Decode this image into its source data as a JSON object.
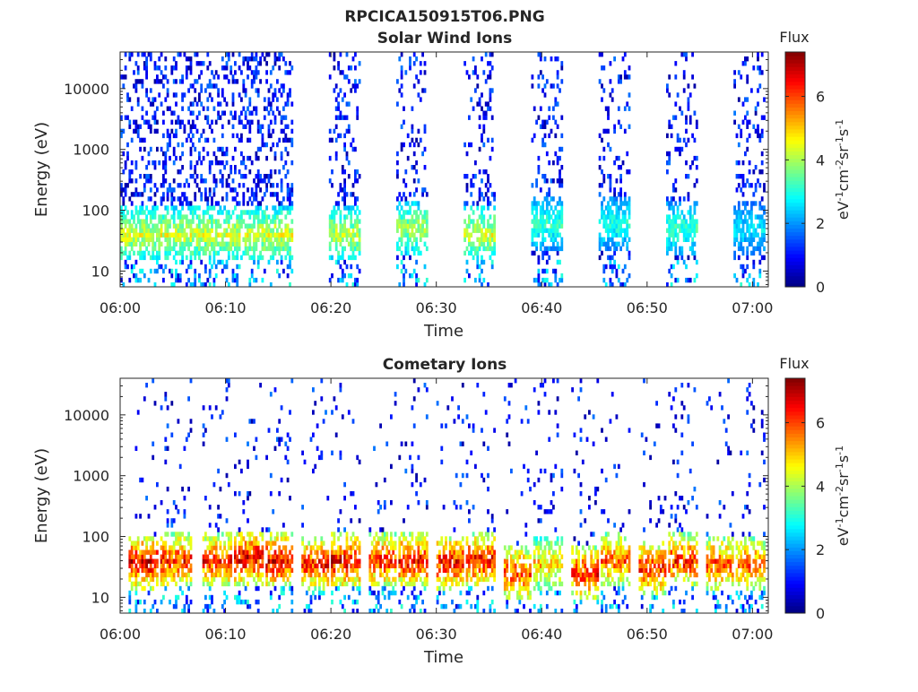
{
  "figure_title": "RPCICA150915T06.PNG",
  "chart_data": [
    {
      "type": "heatmap",
      "title": "Solar Wind Ions",
      "xlabel": "Time",
      "ylabel": "Energy (eV)",
      "x_ticks": [
        "06:00",
        "06:10",
        "06:20",
        "06:30",
        "06:40",
        "06:50",
        "07:00"
      ],
      "x_range_minutes": [
        0,
        61.5
      ],
      "y_scale": "log",
      "y_range": [
        5.5,
        40000
      ],
      "y_ticks": [
        10,
        100,
        1000,
        10000
      ],
      "colorbar": {
        "title": "Flux",
        "label": "eV-1cm-2sr-1s-1",
        "range": [
          0,
          7.4
        ],
        "ticks": [
          0,
          2,
          4,
          6
        ],
        "colormap": "jet"
      },
      "sweeps": [
        {
          "start": 0.0,
          "end": 16.4,
          "core_flux": 4.6,
          "core_energy": 40,
          "upper_density": 0.26
        },
        {
          "start": 19.8,
          "end": 22.8,
          "core_flux": 4.4,
          "core_energy": 40,
          "upper_density": 0.2
        },
        {
          "start": 26.2,
          "end": 29.2,
          "core_flux": 4.2,
          "core_energy": 50,
          "upper_density": 0.16
        },
        {
          "start": 32.6,
          "end": 35.6,
          "core_flux": 4.6,
          "core_energy": 40,
          "upper_density": 0.18
        },
        {
          "start": 39.0,
          "end": 42.0,
          "core_flux": 3.4,
          "core_energy": 60,
          "upper_density": 0.18
        },
        {
          "start": 45.4,
          "end": 48.4,
          "core_flux": 3.2,
          "core_energy": 60,
          "upper_density": 0.16
        },
        {
          "start": 51.8,
          "end": 54.8,
          "core_flux": 3.4,
          "core_energy": 50,
          "upper_density": 0.16
        },
        {
          "start": 58.2,
          "end": 61.2,
          "core_flux": 2.8,
          "core_energy": 50,
          "upper_density": 0.18
        }
      ]
    },
    {
      "type": "heatmap",
      "title": "Cometary Ions",
      "xlabel": "Time",
      "ylabel": "Energy (eV)",
      "x_ticks": [
        "06:00",
        "06:10",
        "06:20",
        "06:30",
        "06:40",
        "06:50",
        "07:00"
      ],
      "x_range_minutes": [
        0,
        61.5
      ],
      "y_scale": "log",
      "y_range": [
        5.5,
        40000
      ],
      "y_ticks": [
        10,
        100,
        1000,
        10000
      ],
      "colorbar": {
        "title": "Flux",
        "label": "eV-1cm-2sr-1s-1",
        "range": [
          0,
          7.4
        ],
        "ticks": [
          0,
          2,
          4,
          6
        ],
        "colormap": "jet"
      },
      "sweeps": [
        {
          "start": 0.8,
          "end": 3.6,
          "core_flux": 7.0,
          "core_energy": 38,
          "upper_density": 0.05
        },
        {
          "start": 3.8,
          "end": 6.8,
          "core_flux": 6.6,
          "core_energy": 40,
          "upper_density": 0.06
        },
        {
          "start": 7.8,
          "end": 10.6,
          "core_flux": 6.6,
          "core_energy": 40,
          "upper_density": 0.06
        },
        {
          "start": 10.8,
          "end": 13.6,
          "core_flux": 7.0,
          "core_energy": 45,
          "upper_density": 0.06
        },
        {
          "start": 13.8,
          "end": 16.4,
          "core_flux": 7.0,
          "core_energy": 40,
          "upper_density": 0.06
        },
        {
          "start": 17.2,
          "end": 19.8,
          "core_flux": 6.6,
          "core_energy": 35,
          "upper_density": 0.05
        },
        {
          "start": 20.0,
          "end": 22.8,
          "core_flux": 7.0,
          "core_energy": 40,
          "upper_density": 0.06
        },
        {
          "start": 23.6,
          "end": 26.2,
          "core_flux": 6.6,
          "core_energy": 40,
          "upper_density": 0.05
        },
        {
          "start": 26.4,
          "end": 29.2,
          "core_flux": 6.8,
          "core_energy": 40,
          "upper_density": 0.06
        },
        {
          "start": 30.0,
          "end": 32.6,
          "core_flux": 6.8,
          "core_energy": 38,
          "upper_density": 0.05
        },
        {
          "start": 32.8,
          "end": 35.6,
          "core_flux": 6.8,
          "core_energy": 40,
          "upper_density": 0.06
        },
        {
          "start": 36.4,
          "end": 39.0,
          "core_flux": 6.4,
          "core_energy": 25,
          "upper_density": 0.05
        },
        {
          "start": 39.2,
          "end": 42.0,
          "core_flux": 5.4,
          "core_energy": 35,
          "upper_density": 0.07
        },
        {
          "start": 42.8,
          "end": 45.4,
          "core_flux": 6.6,
          "core_energy": 25,
          "upper_density": 0.05
        },
        {
          "start": 45.6,
          "end": 48.4,
          "core_flux": 6.2,
          "core_energy": 40,
          "upper_density": 0.07
        },
        {
          "start": 49.2,
          "end": 51.8,
          "core_flux": 6.6,
          "core_energy": 30,
          "upper_density": 0.05
        },
        {
          "start": 52.0,
          "end": 54.8,
          "core_flux": 6.6,
          "core_energy": 40,
          "upper_density": 0.08
        },
        {
          "start": 55.6,
          "end": 58.2,
          "core_flux": 6.4,
          "core_energy": 35,
          "upper_density": 0.05
        },
        {
          "start": 58.4,
          "end": 61.2,
          "core_flux": 6.2,
          "core_energy": 35,
          "upper_density": 0.07
        }
      ]
    }
  ]
}
